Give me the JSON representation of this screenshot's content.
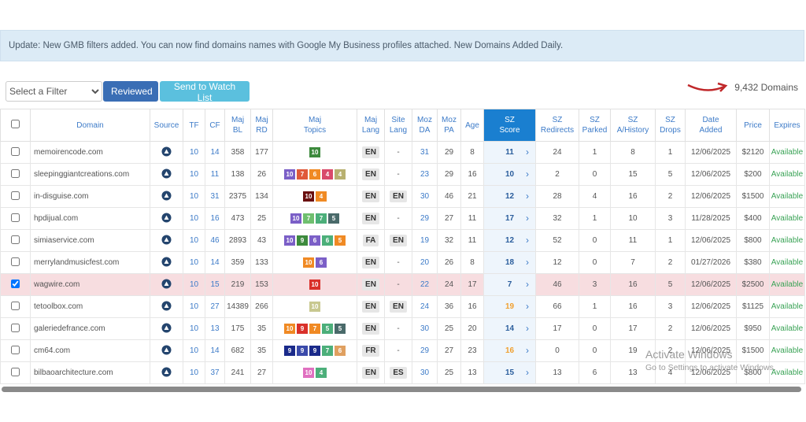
{
  "banner": "Update: New GMB filters added. You can now find domains names with Google My Business profiles attached. New Domains Added Daily.",
  "controls": {
    "filter": "Select a Filter",
    "reviewed": "Reviewed",
    "watch": "Send to Watch List",
    "count": "9,432 Domains"
  },
  "table": {
    "headers": [
      "Domain",
      "Source",
      "TF",
      "CF",
      "Maj BL",
      "Maj RD",
      "Maj Topics",
      "Maj Lang",
      "Site Lang",
      "Moz DA",
      "Moz PA",
      "Age",
      "SZ Score",
      "SZ Redirects",
      "SZ Parked",
      "SZ A/History",
      "SZ Drops",
      "Date Added",
      "Price",
      "Expires"
    ],
    "rows": [
      {
        "selected": false,
        "domain": "memoirencode.com",
        "tf": 10,
        "cf": 14,
        "bl": 358,
        "rd": 177,
        "topics": [
          {
            "value": 10,
            "color": "#3d8a3d"
          }
        ],
        "lang": "EN",
        "site_lang": "-",
        "da": 31,
        "pa": 29,
        "age": 8,
        "sz_score": 11,
        "score_color": "#2a5d9c",
        "redirects": 24,
        "parked": 1,
        "history": 8,
        "drops": 1,
        "date": "12/06/2025",
        "price": "$2120",
        "expires": "Available"
      },
      {
        "selected": false,
        "domain": "sleepinggiantcreations.com",
        "tf": 10,
        "cf": 11,
        "bl": 138,
        "rd": 26,
        "topics": [
          {
            "value": 10,
            "color": "#7b5fc7"
          },
          {
            "value": 7,
            "color": "#e05a3a"
          },
          {
            "value": 6,
            "color": "#f08a24"
          },
          {
            "value": 4,
            "color": "#d94a6a"
          },
          {
            "value": 4,
            "color": "#b8b070"
          }
        ],
        "lang": "EN",
        "site_lang": "-",
        "da": 23,
        "pa": 29,
        "age": 16,
        "sz_score": 10,
        "score_color": "#2a5d9c",
        "redirects": 2,
        "parked": 0,
        "history": 15,
        "drops": 5,
        "date": "12/06/2025",
        "price": "$200",
        "expires": "Available"
      },
      {
        "selected": false,
        "domain": "in-disguise.com",
        "tf": 10,
        "cf": 31,
        "bl": 2375,
        "rd": 134,
        "topics": [
          {
            "value": 10,
            "color": "#6a1010"
          },
          {
            "value": 4,
            "color": "#f08a24"
          }
        ],
        "lang": "EN",
        "site_lang": "EN",
        "da": 30,
        "pa": 46,
        "age": 21,
        "sz_score": 12,
        "score_color": "#2a5d9c",
        "redirects": 28,
        "parked": 4,
        "history": 16,
        "drops": 2,
        "date": "12/06/2025",
        "price": "$1500",
        "expires": "Available"
      },
      {
        "selected": false,
        "domain": "hpdijual.com",
        "tf": 10,
        "cf": 16,
        "bl": 473,
        "rd": 25,
        "topics": [
          {
            "value": 10,
            "color": "#7b5fc7"
          },
          {
            "value": 7,
            "color": "#6fbf6f"
          },
          {
            "value": 7,
            "color": "#4caf7a"
          },
          {
            "value": 5,
            "color": "#4a6a6a"
          }
        ],
        "lang": "EN",
        "site_lang": "-",
        "da": 29,
        "pa": 27,
        "age": 11,
        "sz_score": 17,
        "score_color": "#2a5d9c",
        "redirects": 32,
        "parked": 1,
        "history": 10,
        "drops": 3,
        "date": "11/28/2025",
        "price": "$400",
        "expires": "Available"
      },
      {
        "selected": false,
        "domain": "simiaservice.com",
        "tf": 10,
        "cf": 46,
        "bl": 2893,
        "rd": 43,
        "topics": [
          {
            "value": 10,
            "color": "#7b5fc7"
          },
          {
            "value": 9,
            "color": "#3d8a3d"
          },
          {
            "value": 6,
            "color": "#7b5fc7"
          },
          {
            "value": 6,
            "color": "#4caf7a"
          },
          {
            "value": 5,
            "color": "#f08a24"
          }
        ],
        "lang": "FA",
        "site_lang": "EN",
        "da": 19,
        "pa": 32,
        "age": 11,
        "sz_score": 12,
        "score_color": "#2a5d9c",
        "redirects": 52,
        "parked": 0,
        "history": 11,
        "drops": 1,
        "date": "12/06/2025",
        "price": "$800",
        "expires": "Available"
      },
      {
        "selected": false,
        "domain": "merrylandmusicfest.com",
        "tf": 10,
        "cf": 14,
        "bl": 359,
        "rd": 133,
        "topics": [
          {
            "value": 10,
            "color": "#f08a24"
          },
          {
            "value": 6,
            "color": "#7b5fc7"
          }
        ],
        "lang": "EN",
        "site_lang": "-",
        "da": 20,
        "pa": 26,
        "age": 8,
        "sz_score": 18,
        "score_color": "#2a5d9c",
        "redirects": 12,
        "parked": 0,
        "history": 7,
        "drops": 2,
        "date": "01/27/2026",
        "price": "$380",
        "expires": "Available"
      },
      {
        "selected": true,
        "domain": "wagwire.com",
        "tf": 10,
        "cf": 15,
        "bl": 219,
        "rd": 153,
        "topics": [
          {
            "value": 10,
            "color": "#d9302a"
          }
        ],
        "lang": "EN",
        "site_lang": "-",
        "da": 22,
        "pa": 24,
        "age": 17,
        "sz_score": 7,
        "score_color": "#2a5d9c",
        "redirects": 46,
        "parked": 3,
        "history": 16,
        "drops": 5,
        "date": "12/06/2025",
        "price": "$2500",
        "expires": "Available"
      },
      {
        "selected": false,
        "domain": "tetoolbox.com",
        "tf": 10,
        "cf": 27,
        "bl": 14389,
        "rd": 266,
        "topics": [
          {
            "value": 10,
            "color": "#c8c890"
          }
        ],
        "lang": "EN",
        "site_lang": "EN",
        "da": 24,
        "pa": 36,
        "age": 16,
        "sz_score": 19,
        "score_color": "#f0a030",
        "redirects": 66,
        "parked": 1,
        "history": 16,
        "drops": 3,
        "date": "12/06/2025",
        "price": "$1125",
        "expires": "Available"
      },
      {
        "selected": false,
        "domain": "galeriedefrance.com",
        "tf": 10,
        "cf": 13,
        "bl": 175,
        "rd": 35,
        "topics": [
          {
            "value": 10,
            "color": "#f08a24"
          },
          {
            "value": 9,
            "color": "#d9302a"
          },
          {
            "value": 7,
            "color": "#f08a24"
          },
          {
            "value": 5,
            "color": "#4caf7a"
          },
          {
            "value": 5,
            "color": "#4a6a6a"
          }
        ],
        "lang": "EN",
        "site_lang": "-",
        "da": 30,
        "pa": 25,
        "age": 20,
        "sz_score": 14,
        "score_color": "#2a5d9c",
        "redirects": 17,
        "parked": 0,
        "history": 17,
        "drops": 2,
        "date": "12/06/2025",
        "price": "$950",
        "expires": "Available"
      },
      {
        "selected": false,
        "domain": "cm64.com",
        "tf": 10,
        "cf": 14,
        "bl": 682,
        "rd": 35,
        "topics": [
          {
            "value": 9,
            "color": "#1a2a8a"
          },
          {
            "value": 9,
            "color": "#3a4aaa"
          },
          {
            "value": 9,
            "color": "#1a2a8a"
          },
          {
            "value": 7,
            "color": "#4caf7a"
          },
          {
            "value": 6,
            "color": "#e0a060"
          }
        ],
        "lang": "FR",
        "site_lang": "-",
        "da": 29,
        "pa": 27,
        "age": 23,
        "sz_score": 16,
        "score_color": "#f0a030",
        "redirects": 0,
        "parked": 0,
        "history": 19,
        "drops": 2,
        "date": "12/06/2025",
        "price": "$1500",
        "expires": "Available"
      },
      {
        "selected": false,
        "domain": "bilbaoarchitecture.com",
        "tf": 10,
        "cf": 37,
        "bl": 241,
        "rd": 27,
        "topics": [
          {
            "value": 10,
            "color": "#e070c0"
          },
          {
            "value": 4,
            "color": "#4caf7a"
          }
        ],
        "lang": "EN",
        "site_lang": "ES",
        "da": 30,
        "pa": 25,
        "age": 13,
        "sz_score": 15,
        "score_color": "#2a5d9c",
        "redirects": 13,
        "parked": 6,
        "history": 13,
        "drops": 4,
        "date": "12/06/2025",
        "price": "$800",
        "expires": "Available"
      }
    ]
  },
  "watermark": {
    "title": "Activate Windows",
    "subtitle": "Go to Settings to activate Windows."
  }
}
